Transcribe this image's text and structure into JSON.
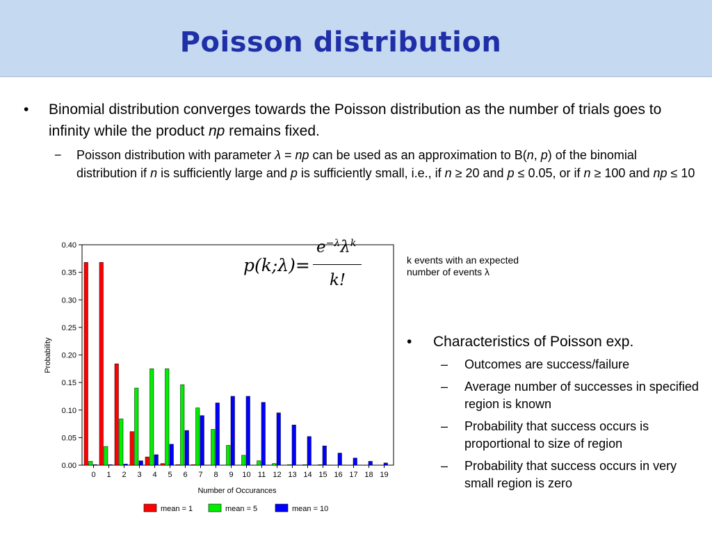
{
  "slide": {
    "title": "Poisson distribution",
    "bullet1": {
      "text_a": "Binomial distribution converges towards the Poisson distribution as the number of trials goes to infinity while the product ",
      "text_np": "np",
      "text_b": " remains fixed."
    },
    "sub1": {
      "t1": "Poisson distribution with parameter ",
      "lambda": "λ",
      "t2": " = ",
      "np1": "np",
      "t3": " can be used as an approximation to B(",
      "n1": "n",
      "t4": ", ",
      "p1": "p",
      "t5": ") of the binomial distribution if ",
      "n2": "n",
      "t6": " is sufficiently large and ",
      "p2": "p",
      "t7": " is sufficiently small, i.e., if ",
      "n3": "n",
      "t8": " ≥ 20 and ",
      "p3": "p",
      "t9": " ≤ 0.05, or if ",
      "n4": "n",
      "t10": " ≥ 100 and ",
      "np2": "np",
      "t11": " ≤ 10"
    },
    "formula": {
      "lhs": "p(k;λ)=",
      "num_base1": "e",
      "num_sup1": "−λ",
      "num_base2": "λ",
      "num_sup2": "k",
      "den": "k!"
    },
    "formula_note": "k events with an expected number of events λ",
    "characteristics": {
      "title": "Characteristics of Poisson exp.",
      "items": [
        "Outcomes are success/failure",
        "Average number of successes in specified region is known",
        "Probability that success occurs is proportional to size of region",
        "Probability that success occurs in very small region is zero"
      ]
    }
  },
  "colors": {
    "title_bar": "#c5d9f1",
    "title_text": "#1f2fa8",
    "mean1": "#ff0000",
    "mean5": "#00ee00",
    "mean10": "#0000ff"
  },
  "chart_data": {
    "type": "bar",
    "xlabel": "Number of Occurances",
    "ylabel": "Probability",
    "ylim": [
      0,
      0.4
    ],
    "yticks": [
      "0.00",
      "0.05",
      "0.10",
      "0.15",
      "0.20",
      "0.25",
      "0.30",
      "0.35",
      "0.40"
    ],
    "categories": [
      "0",
      "1",
      "2",
      "3",
      "4",
      "5",
      "6",
      "7",
      "8",
      "9",
      "10",
      "11",
      "12",
      "13",
      "14",
      "15",
      "16",
      "17",
      "18",
      "19"
    ],
    "legend_position": "bottom",
    "series": [
      {
        "name": "mean = 1",
        "color": "#ff0000",
        "values": [
          0.368,
          0.368,
          0.184,
          0.061,
          0.015,
          0.003,
          0.0005,
          0.0001,
          0,
          0,
          0,
          0,
          0,
          0,
          0,
          0,
          0,
          0,
          0,
          0
        ]
      },
      {
        "name": "mean = 5",
        "color": "#00ee00",
        "values": [
          0.007,
          0.034,
          0.084,
          0.14,
          0.175,
          0.175,
          0.146,
          0.104,
          0.065,
          0.036,
          0.018,
          0.008,
          0.003,
          0.001,
          0.0005,
          0.0002,
          0,
          0,
          0,
          0
        ]
      },
      {
        "name": "mean = 10",
        "color": "#0000ff",
        "values": [
          5e-05,
          0.0005,
          0.002,
          0.008,
          0.019,
          0.038,
          0.063,
          0.09,
          0.113,
          0.125,
          0.125,
          0.114,
          0.095,
          0.073,
          0.052,
          0.035,
          0.022,
          0.013,
          0.007,
          0.004
        ]
      }
    ]
  }
}
